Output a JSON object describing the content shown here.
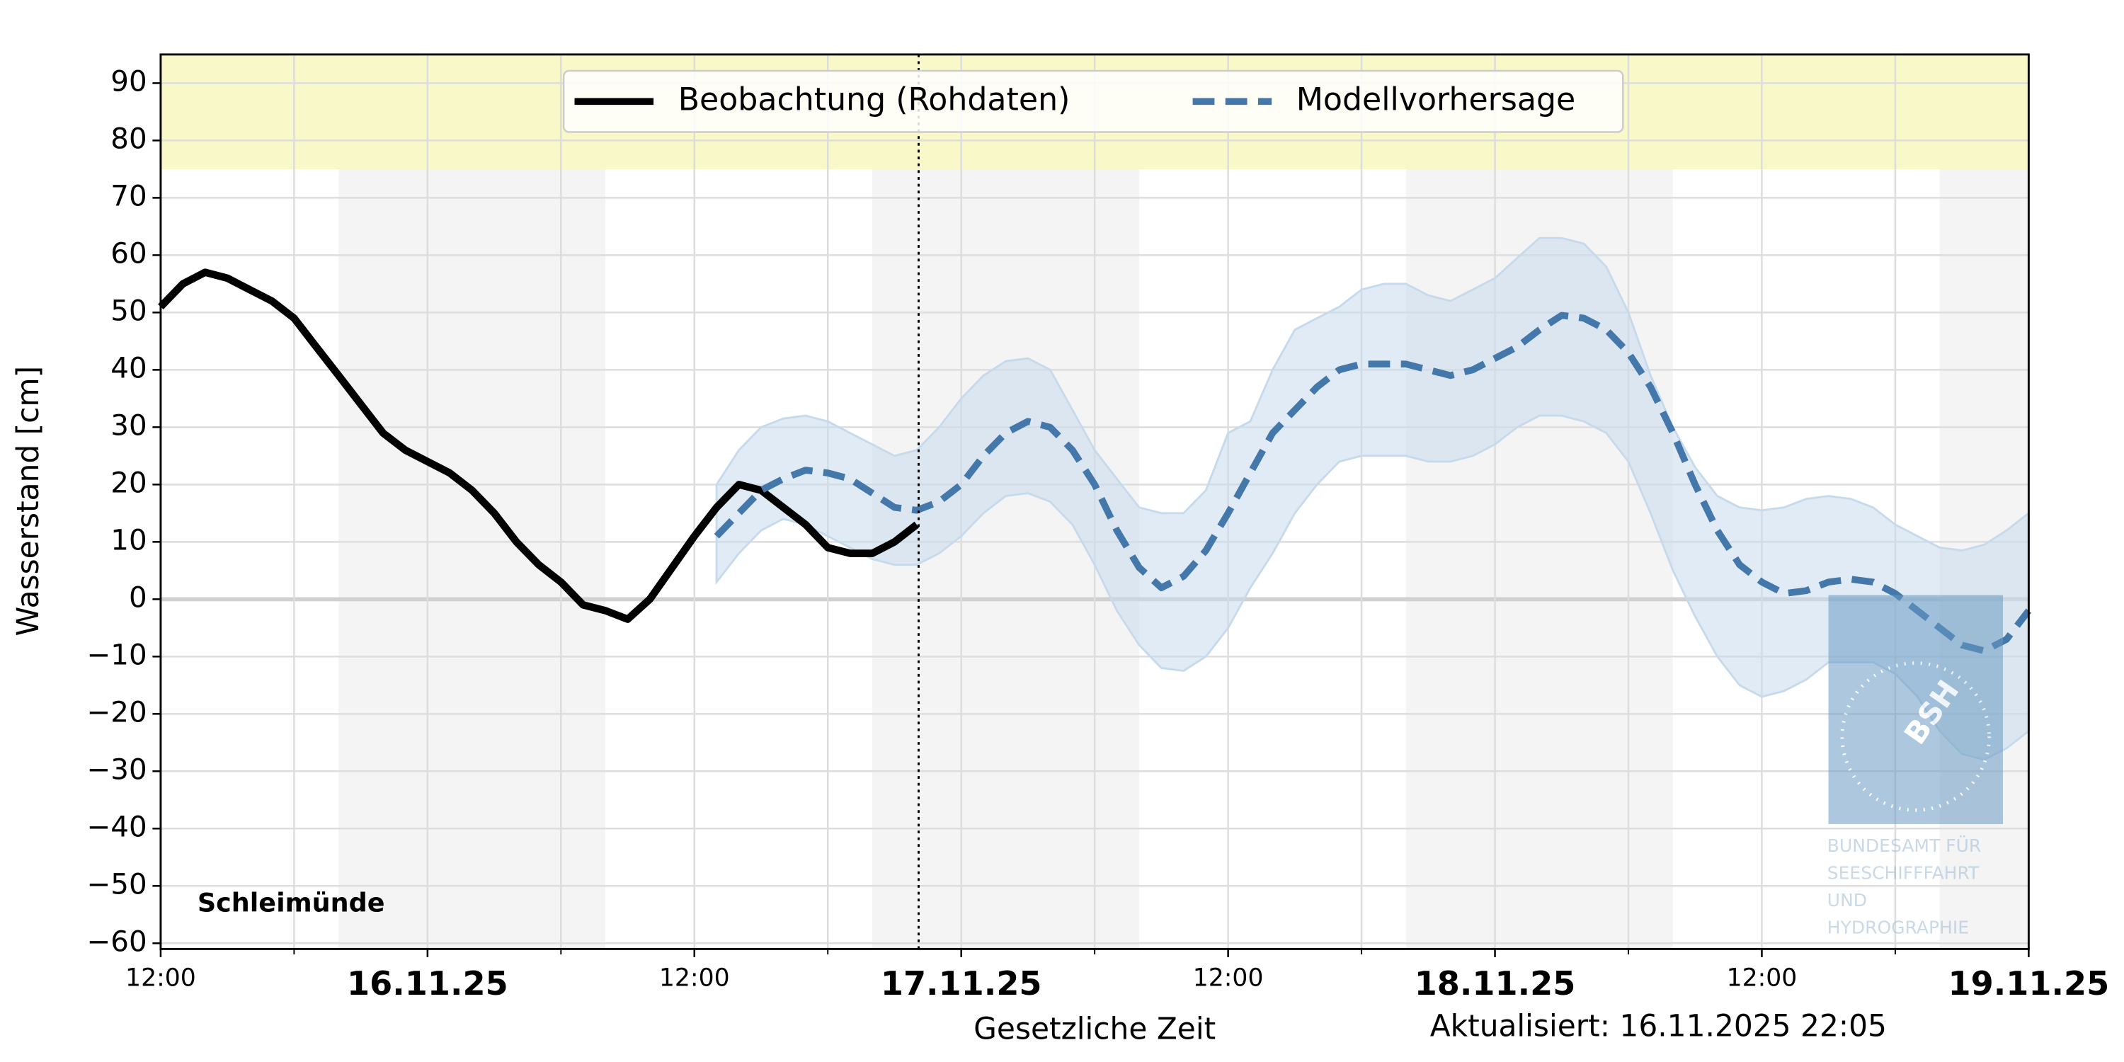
{
  "chart_data": {
    "type": "line",
    "ylabel": "Wasserstand [cm]",
    "xlabel": "Gesetzliche Zeit",
    "updated": "Aktualisiert: 16.11.2025 22:05",
    "station": "Schleimünde",
    "watermark": {
      "mark": "BSH",
      "lines": [
        "BUNDESAMT FÜR",
        "SEESCHIFFFAHRT",
        "UND",
        "HYDROGRAPHIE"
      ]
    },
    "xlim": [
      "2025-11-15T12:00",
      "2025-11-19T00:00"
    ],
    "xticks": [
      {
        "value": "2025-11-15T12:00",
        "label": "12:00"
      },
      {
        "value": "2025-11-16T00:00",
        "label": "16.11.25"
      },
      {
        "value": "2025-11-16T12:00",
        "label": "12:00"
      },
      {
        "value": "2025-11-17T00:00",
        "label": "17.11.25"
      },
      {
        "value": "2025-11-17T12:00",
        "label": "12:00"
      },
      {
        "value": "2025-11-18T00:00",
        "label": "18.11.25"
      },
      {
        "value": "2025-11-18T12:00",
        "label": "12:00"
      },
      {
        "value": "2025-11-19T00:00",
        "label": "19.11.25"
      }
    ],
    "xminorticks": [
      "2025-11-15T18:00",
      "2025-11-16T06:00",
      "2025-11-16T18:00",
      "2025-11-17T06:00",
      "2025-11-17T18:00",
      "2025-11-18T06:00",
      "2025-11-18T18:00"
    ],
    "ylim": [
      -61,
      95
    ],
    "yticks": [
      {
        "value": -60,
        "label": "−60"
      },
      {
        "value": -50,
        "label": "−50"
      },
      {
        "value": -40,
        "label": "−40"
      },
      {
        "value": -30,
        "label": "−30"
      },
      {
        "value": -20,
        "label": "−20"
      },
      {
        "value": -10,
        "label": "−10"
      },
      0,
      10,
      20,
      30,
      40,
      50,
      60,
      70,
      80,
      90
    ],
    "grid": true,
    "legend": "upper center",
    "warning_band": {
      "range": [
        75,
        95
      ],
      "color": "#f8f8c8"
    },
    "night_shading": {
      "color": "#f4f4f4",
      "periods": [
        [
          "2025-11-15T20:00",
          "2025-11-16T08:00"
        ],
        [
          "2025-11-16T20:00",
          "2025-11-17T08:00"
        ],
        [
          "2025-11-17T20:00",
          "2025-11-18T08:00"
        ],
        [
          "2025-11-18T20:00",
          "2025-11-19T00:00"
        ]
      ]
    },
    "now": "2025-11-16T22:05",
    "series": [
      {
        "name": "Beobachtung (Rohdaten)",
        "color": "#000000",
        "style": "solid",
        "x": [
          "2025-11-15T12:00",
          "2025-11-15T13:00",
          "2025-11-15T14:00",
          "2025-11-15T15:00",
          "2025-11-15T16:00",
          "2025-11-15T17:00",
          "2025-11-15T18:00",
          "2025-11-15T19:00",
          "2025-11-15T20:00",
          "2025-11-15T21:00",
          "2025-11-15T22:00",
          "2025-11-15T23:00",
          "2025-11-16T00:00",
          "2025-11-16T01:00",
          "2025-11-16T02:00",
          "2025-11-16T03:00",
          "2025-11-16T04:00",
          "2025-11-16T05:00",
          "2025-11-16T06:00",
          "2025-11-16T07:00",
          "2025-11-16T08:00",
          "2025-11-16T09:00",
          "2025-11-16T10:00",
          "2025-11-16T11:00",
          "2025-11-16T12:00",
          "2025-11-16T13:00",
          "2025-11-16T14:00",
          "2025-11-16T15:00",
          "2025-11-16T16:00",
          "2025-11-16T17:00",
          "2025-11-16T18:00",
          "2025-11-16T19:00",
          "2025-11-16T20:00",
          "2025-11-16T21:00",
          "2025-11-16T22:00"
        ],
        "values": [
          51,
          55,
          57,
          56,
          54,
          52,
          49,
          44,
          39,
          34,
          29,
          26,
          24,
          22,
          19,
          15,
          10,
          6,
          3,
          -1,
          -2,
          -3.5,
          0,
          5.5,
          11,
          16,
          20,
          19,
          16,
          13,
          9,
          8,
          8,
          10,
          13
        ]
      },
      {
        "name": "Modellvorhersage",
        "color": "#4477aa",
        "style": "dashed",
        "band_color": "#c6daec",
        "x": [
          "2025-11-16T13:00",
          "2025-11-16T14:00",
          "2025-11-16T15:00",
          "2025-11-16T16:00",
          "2025-11-16T17:00",
          "2025-11-16T18:00",
          "2025-11-16T19:00",
          "2025-11-16T20:00",
          "2025-11-16T21:00",
          "2025-11-16T22:00",
          "2025-11-16T23:00",
          "2025-11-17T00:00",
          "2025-11-17T01:00",
          "2025-11-17T02:00",
          "2025-11-17T03:00",
          "2025-11-17T04:00",
          "2025-11-17T05:00",
          "2025-11-17T06:00",
          "2025-11-17T07:00",
          "2025-11-17T08:00",
          "2025-11-17T09:00",
          "2025-11-17T10:00",
          "2025-11-17T11:00",
          "2025-11-17T12:00",
          "2025-11-17T13:00",
          "2025-11-17T14:00",
          "2025-11-17T15:00",
          "2025-11-17T16:00",
          "2025-11-17T17:00",
          "2025-11-17T18:00",
          "2025-11-17T19:00",
          "2025-11-17T20:00",
          "2025-11-17T21:00",
          "2025-11-17T22:00",
          "2025-11-17T23:00",
          "2025-11-18T00:00",
          "2025-11-18T01:00",
          "2025-11-18T02:00",
          "2025-11-18T03:00",
          "2025-11-18T04:00",
          "2025-11-18T05:00",
          "2025-11-18T06:00",
          "2025-11-18T07:00",
          "2025-11-18T08:00",
          "2025-11-18T09:00",
          "2025-11-18T10:00",
          "2025-11-18T11:00",
          "2025-11-18T12:00",
          "2025-11-18T13:00",
          "2025-11-18T14:00",
          "2025-11-18T15:00",
          "2025-11-18T16:00",
          "2025-11-18T17:00",
          "2025-11-18T18:00",
          "2025-11-18T19:00",
          "2025-11-18T20:00",
          "2025-11-18T21:00",
          "2025-11-18T22:00",
          "2025-11-18T23:00",
          "2025-11-19T00:00"
        ],
        "values": [
          11,
          15,
          19,
          21,
          22.5,
          22,
          21,
          18.5,
          16,
          15.5,
          17,
          20,
          25,
          29,
          31,
          30,
          26,
          20,
          12,
          5.5,
          2,
          4,
          8.5,
          15,
          22,
          29,
          33,
          37,
          40,
          41,
          41,
          41,
          40,
          39,
          40,
          42,
          44,
          47,
          49.5,
          49,
          47,
          43,
          37,
          29,
          20,
          12,
          6,
          3,
          1,
          1.5,
          3,
          3.5,
          3,
          1,
          -2,
          -5,
          -8,
          -9,
          -7,
          -2
        ],
        "upper": [
          20,
          26,
          30,
          31.5,
          32,
          31,
          29,
          27,
          25,
          26,
          30,
          35,
          39,
          41.5,
          42,
          40,
          33,
          26,
          21,
          16,
          15,
          15,
          19,
          29,
          31,
          40,
          47,
          49,
          51,
          54,
          55,
          55,
          53,
          52,
          54,
          56,
          59.5,
          63,
          63,
          62,
          58,
          50,
          39,
          30,
          23,
          18,
          16,
          15.5,
          16,
          17.5,
          18,
          17.5,
          16,
          13,
          11,
          9,
          8.5,
          9.5,
          12,
          15
        ],
        "lower": [
          3,
          8,
          12,
          14,
          13,
          11,
          9,
          7,
          6,
          6,
          8,
          11,
          15,
          18,
          18.5,
          17,
          13,
          6,
          -2,
          -8,
          -12,
          -12.5,
          -10,
          -5,
          2,
          8,
          15,
          20,
          24,
          25,
          25,
          25,
          24,
          24,
          25,
          27,
          30,
          32,
          32,
          31,
          29,
          24,
          15,
          5,
          -3,
          -10,
          -15,
          -17,
          -16,
          -14,
          -11,
          -11,
          -11,
          -13,
          -17,
          -23,
          -27,
          -28,
          -26,
          -23
        ]
      }
    ]
  }
}
